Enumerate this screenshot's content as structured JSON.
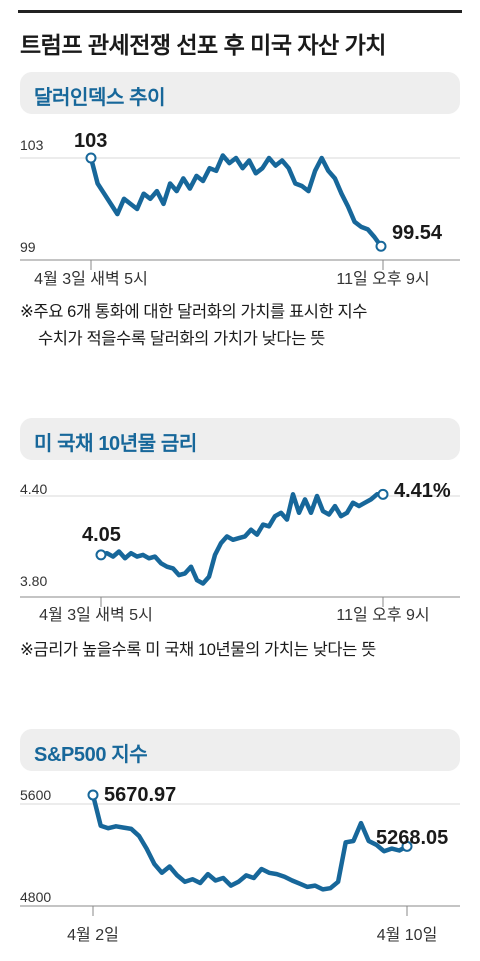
{
  "title": "트럼프 관세전쟁 선포 후 미국 자산 가치",
  "chart_data": [
    {
      "type": "line",
      "title": "달러인덱스 추이",
      "color": "#17679a",
      "y_ticks": [
        "103",
        "99"
      ],
      "ylim": [
        99,
        103
      ],
      "x_ticks": [
        "4월 3일 새벽 5시",
        "11일 오후 9시"
      ],
      "series": [
        {
          "values": [
            103.0,
            102.0,
            101.6,
            101.2,
            100.8,
            101.4,
            101.2,
            101.0,
            101.6,
            101.4,
            101.7,
            101.2,
            102.0,
            101.7,
            102.2,
            101.8,
            102.3,
            102.1,
            102.6,
            102.5,
            103.1,
            102.8,
            103.0,
            102.6,
            102.9,
            102.4,
            102.6,
            103.0,
            102.7,
            102.9,
            102.6,
            102.0,
            101.9,
            101.7,
            102.5,
            103.0,
            102.5,
            102.2,
            101.6,
            101.1,
            100.5,
            100.3,
            100.2,
            99.9,
            99.54
          ]
        }
      ],
      "start_label": "103",
      "end_label": "99.54",
      "footnote": [
        "※주요 6개 통화에 대한 달러화의 가치를 표시한 지수",
        "수치가 적을수록 달러화의 가치가 낮다는 뜻"
      ]
    },
    {
      "type": "line",
      "title": "미 국채 10년물 금리",
      "color": "#17679a",
      "y_ticks": [
        "4.40",
        "3.80"
      ],
      "ylim": [
        3.8,
        4.4
      ],
      "x_ticks": [
        "4월 3일 새벽 5시",
        "11일 오후 9시"
      ],
      "series": [
        {
          "values": [
            4.05,
            4.06,
            4.04,
            4.07,
            4.03,
            4.06,
            4.04,
            4.05,
            4.03,
            4.04,
            4.0,
            3.98,
            3.97,
            3.93,
            3.94,
            3.98,
            3.9,
            3.88,
            3.92,
            4.05,
            4.12,
            4.16,
            4.14,
            4.15,
            4.16,
            4.2,
            4.17,
            4.23,
            4.22,
            4.28,
            4.3,
            4.26,
            4.41,
            4.3,
            4.38,
            4.3,
            4.4,
            4.31,
            4.29,
            4.34,
            4.28,
            4.3,
            4.36,
            4.34,
            4.36,
            4.38,
            4.41,
            4.41
          ]
        }
      ],
      "start_label": "4.05",
      "end_label": "4.41%",
      "footnote": [
        "※금리가 높을수록 미 국채 10년물의 가치는 낮다는 뜻"
      ]
    },
    {
      "type": "line",
      "title": "S&P500 지수",
      "color": "#17679a",
      "y_ticks": [
        "5600",
        "4800"
      ],
      "ylim": [
        4800,
        5600
      ],
      "x_ticks": [
        "4월 2일",
        "4월 10일"
      ],
      "series": [
        {
          "values": [
            5670.97,
            5430,
            5410,
            5425,
            5415,
            5405,
            5350,
            5250,
            5130,
            5060,
            5110,
            5040,
            4990,
            5010,
            4980,
            5050,
            5000,
            5020,
            4960,
            4990,
            5040,
            5020,
            5090,
            5060,
            5050,
            5030,
            5000,
            4975,
            4950,
            4960,
            4930,
            4940,
            4990,
            5300,
            5310,
            5450,
            5310,
            5280,
            5230,
            5250,
            5235,
            5268.05
          ]
        }
      ],
      "start_label": "5670.97",
      "end_label": "5268.05"
    }
  ]
}
